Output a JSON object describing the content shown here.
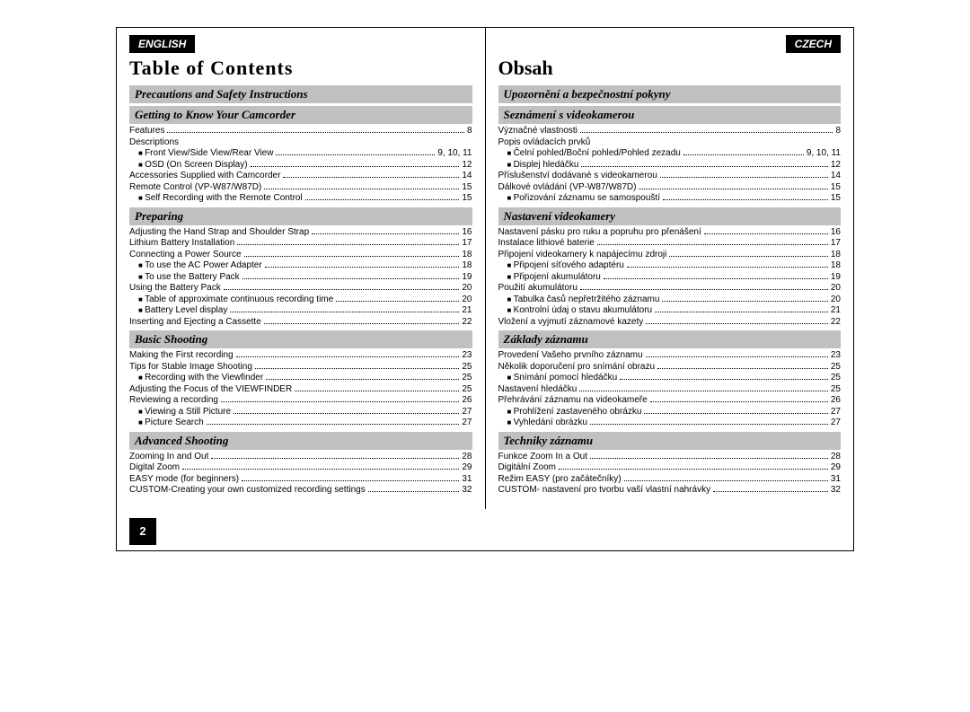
{
  "left": {
    "lang": "ENGLISH",
    "title": "Table of Contents",
    "sections": [
      {
        "heading": "Precautions and Safety Instructions",
        "items": []
      },
      {
        "heading": "Getting to Know Your Camcorder",
        "items": [
          {
            "label": "Features",
            "page": "8",
            "indent": 0
          },
          {
            "label": "Descriptions",
            "page": "",
            "indent": 0
          },
          {
            "label": "Front View/Side View/Rear View",
            "page": "9, 10, 11",
            "indent": 1,
            "bullet": true
          },
          {
            "label": "OSD (On Screen Display)",
            "page": "12",
            "indent": 1,
            "bullet": true
          },
          {
            "label": "Accessories Supplied with Camcorder",
            "page": "14",
            "indent": 0
          },
          {
            "label": "Remote Control (VP-W87/W87D)",
            "page": "15",
            "indent": 0
          },
          {
            "label": "Self Recording with the Remote Control",
            "page": "15",
            "indent": 1,
            "bullet": true
          }
        ]
      },
      {
        "heading": "Preparing",
        "items": [
          {
            "label": "Adjusting the Hand Strap and Shoulder Strap",
            "page": "16",
            "indent": 0
          },
          {
            "label": "Lithium Battery Installation",
            "page": "17",
            "indent": 0
          },
          {
            "label": "Connecting a Power Source",
            "page": "18",
            "indent": 0
          },
          {
            "label": "To use the AC Power Adapter",
            "page": "18",
            "indent": 1,
            "bullet": true
          },
          {
            "label": "To use the Battery Pack",
            "page": "19",
            "indent": 1,
            "bullet": true
          },
          {
            "label": "Using the Battery Pack",
            "page": "20",
            "indent": 0
          },
          {
            "label": "Table of approximate continuous recording time",
            "page": "20",
            "indent": 1,
            "bullet": true
          },
          {
            "label": "Battery Level display",
            "page": "21",
            "indent": 1,
            "bullet": true
          },
          {
            "label": "Inserting and Ejecting a Cassette",
            "page": "22",
            "indent": 0
          }
        ]
      },
      {
        "heading": "Basic Shooting",
        "items": [
          {
            "label": "Making the First recording",
            "page": "23",
            "indent": 0
          },
          {
            "label": "Tips for Stable Image Shooting",
            "page": "25",
            "indent": 0
          },
          {
            "label": "Recording with the Viewfinder",
            "page": "25",
            "indent": 1,
            "bullet": true
          },
          {
            "label": "Adjusting the Focus of the VIEWFINDER",
            "page": "25",
            "indent": 0
          },
          {
            "label": "Reviewing a recording",
            "page": "26",
            "indent": 0
          },
          {
            "label": "Viewing a Still Picture",
            "page": "27",
            "indent": 1,
            "bullet": true
          },
          {
            "label": "Picture Search",
            "page": "27",
            "indent": 1,
            "bullet": true
          }
        ]
      },
      {
        "heading": "Advanced Shooting",
        "items": [
          {
            "label": "Zooming In and Out",
            "page": "28",
            "indent": 0
          },
          {
            "label": "Digital Zoom",
            "page": "29",
            "indent": 0
          },
          {
            "label": "EASY mode (for beginners)",
            "page": "31",
            "indent": 0
          },
          {
            "label": "CUSTOM-Creating your own customized recording settings",
            "page": "32",
            "indent": 0
          }
        ]
      }
    ],
    "page_number": "2"
  },
  "right": {
    "lang": "CZECH",
    "title": "Obsah",
    "sections": [
      {
        "heading": "Upozornění a bezpečnostní pokyny",
        "items": []
      },
      {
        "heading": "Seznámení s videokamerou",
        "items": [
          {
            "label": "Význačné vlastnosti",
            "page": "8",
            "indent": 0
          },
          {
            "label": "Popis ovládacích prvků",
            "page": "",
            "indent": 0
          },
          {
            "label": "Čelní pohled/Boční pohled/Pohled zezadu",
            "page": "9, 10, 11",
            "indent": 1,
            "bullet": true
          },
          {
            "label": "Displej hledáčku",
            "page": "12",
            "indent": 1,
            "bullet": true
          },
          {
            "label": "Příslušenství dodávané s videokamerou",
            "page": "14",
            "indent": 0
          },
          {
            "label": "Dálkové ovládání (VP-W87/W87D)",
            "page": "15",
            "indent": 0
          },
          {
            "label": "Pořizování záznamu se samospouští",
            "page": "15",
            "indent": 1,
            "bullet": true
          }
        ]
      },
      {
        "heading": "Nastavení videokamery",
        "items": [
          {
            "label": "Nastavení pásku pro ruku a popruhu pro přenášení",
            "page": "16",
            "indent": 0
          },
          {
            "label": "Instalace lithiové baterie",
            "page": "17",
            "indent": 0
          },
          {
            "label": "Připojení videokamery k napájecímu zdroji",
            "page": "18",
            "indent": 0
          },
          {
            "label": "Připojení síťového adaptéru",
            "page": "18",
            "indent": 1,
            "bullet": true
          },
          {
            "label": "Připojení akumulátoru",
            "page": "19",
            "indent": 1,
            "bullet": true
          },
          {
            "label": "Použití akumulátoru",
            "page": "20",
            "indent": 0
          },
          {
            "label": "Tabulka časů nepřetržitého záznamu",
            "page": "20",
            "indent": 1,
            "bullet": true
          },
          {
            "label": "Kontrolní údaj o stavu akumulátoru",
            "page": "21",
            "indent": 1,
            "bullet": true
          },
          {
            "label": "Vložení a vyjmutí záznamové kazety",
            "page": "22",
            "indent": 0
          }
        ]
      },
      {
        "heading": "Základy záznamu",
        "items": [
          {
            "label": "Provedení Vašeho prvního záznamu",
            "page": "23",
            "indent": 0
          },
          {
            "label": "Několik doporučení pro snímání obrazu",
            "page": "25",
            "indent": 0
          },
          {
            "label": "Snímání pomocí hledáčku",
            "page": "25",
            "indent": 1,
            "bullet": true
          },
          {
            "label": "Nastavení hledáčku",
            "page": "25",
            "indent": 0
          },
          {
            "label": "Přehrávání záznamu na videokameře",
            "page": "26",
            "indent": 0
          },
          {
            "label": "Prohlížení zastaveného obrázku",
            "page": "27",
            "indent": 1,
            "bullet": true
          },
          {
            "label": "Vyhledání obrázku",
            "page": "27",
            "indent": 1,
            "bullet": true
          }
        ]
      },
      {
        "heading": "Techniky záznamu",
        "items": [
          {
            "label": "Funkce Zoom In a Out",
            "page": "28",
            "indent": 0
          },
          {
            "label": "Digitální Zoom",
            "page": "29",
            "indent": 0
          },
          {
            "label": "Režim EASY (pro začátečníky)",
            "page": "31",
            "indent": 0
          },
          {
            "label": "CUSTOM- nastavení pro tvorbu vaší vlastní nahrávky",
            "page": "32",
            "indent": 0
          }
        ]
      }
    ]
  }
}
